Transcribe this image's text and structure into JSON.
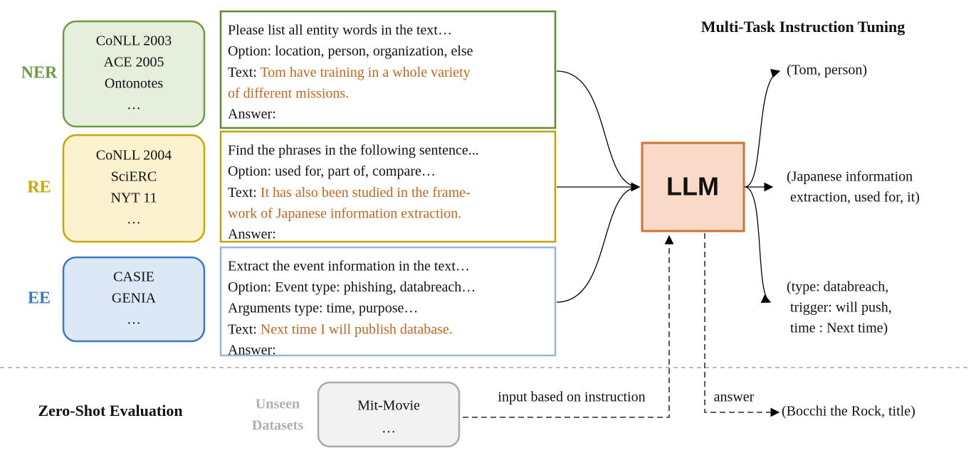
{
  "title": "Multi-Task Instruction Tuning",
  "llm": "LLM",
  "tasks": [
    {
      "name": "NER",
      "datasets": [
        "CoNLL 2003",
        "ACE 2005",
        "Ontonotes",
        "…"
      ],
      "instruction": "Please list all entity words in the text…",
      "options": [
        "Option: location, person, organization, else"
      ],
      "text_prefix": "Text:",
      "text_lines": [
        "Tom have training in a whole variety",
        "of different missions."
      ],
      "answer": "Answer:",
      "output": [
        "(Tom, person)"
      ]
    },
    {
      "name": "RE",
      "datasets": [
        "CoNLL 2004",
        "SciERC",
        "NYT 11",
        "…"
      ],
      "instruction": "Find the phrases in the following sentence...",
      "options": [
        "Option: used for, part of, compare…"
      ],
      "text_prefix": "Text:",
      "text_lines": [
        "It has also been studied in the frame-",
        "work of Japanese information extraction."
      ],
      "answer": "Answer:",
      "output": [
        "(Japanese information",
        " extraction, used for, it)"
      ]
    },
    {
      "name": "EE",
      "datasets": [
        "CASIE",
        "GENIA",
        "…"
      ],
      "instruction": "Extract the event information in the text…",
      "options": [
        "Option: Event type: phishing, databreach…",
        "Arguments type: time, purpose…"
      ],
      "text_prefix": "Text:",
      "text_lines": [
        "Next time I will publish database."
      ],
      "answer": "Answer:",
      "output": [
        "(type: databreach,",
        " trigger: will push,",
        " time : Next time)"
      ]
    }
  ],
  "zero_shot": {
    "label": "Zero-Shot Evaluation",
    "unseen": [
      "Unseen",
      "Datasets"
    ],
    "datasets": [
      "Mit-Movie",
      "…"
    ],
    "input_label": "input based on instruction",
    "answer_label": "answer",
    "output": "(Bocchi the Rock, title)"
  }
}
